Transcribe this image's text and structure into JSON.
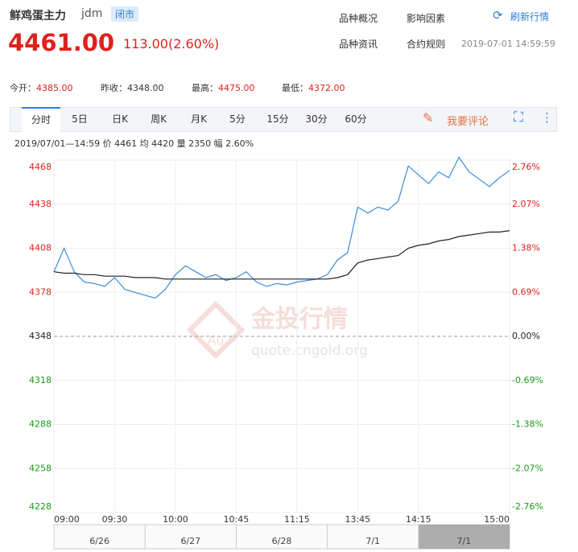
{
  "header": {
    "name": "鲜鸡蛋主力",
    "code": "jdm",
    "status": "闭市",
    "links": [
      "品种概况",
      "影响因素",
      "品种资讯",
      "合约规则"
    ],
    "refresh": "刷新行情",
    "time": "2019-07-01 14:59:59",
    "price": "4461.00",
    "change": "113.00(2.60%)"
  },
  "stats": [
    {
      "label": "今开：",
      "value": "4385.00"
    },
    {
      "label": "昨收：",
      "value": "4348.00"
    },
    {
      "label": "最高：",
      "value": "4475.00"
    },
    {
      "label": "最低：",
      "value": "4372.00"
    }
  ],
  "tabs": [
    "分时",
    "5日",
    "日K",
    "周K",
    "月K",
    "5分",
    "15分",
    "30分",
    "60分"
  ],
  "comment": "我要评论",
  "info": {
    "time": "2019/07/01—14:59",
    "items": [
      {
        "label": "价",
        "value": "4461"
      },
      {
        "label": "均",
        "value": "4420"
      },
      {
        "label": "量",
        "value": "2350"
      },
      {
        "label": "幅",
        "value": "2.60%"
      }
    ]
  },
  "watermark": {
    "logo": "Au",
    "text": "金投行情",
    "url": "quote.cngold.org"
  },
  "navigator": {
    "dates": [
      "6/26",
      "6/27",
      "6/28",
      "7/1",
      "7/1"
    ]
  },
  "chart_data": {
    "type": "line",
    "x": [
      0,
      5,
      10,
      15,
      20,
      25,
      30,
      35,
      40,
      45,
      50,
      55,
      60,
      65,
      70,
      75,
      80,
      85,
      90,
      95,
      100,
      105,
      110,
      115,
      120,
      125,
      130,
      135,
      140,
      145,
      150,
      155,
      160,
      165,
      170,
      175,
      180,
      185,
      190,
      195,
      200,
      205,
      210,
      215,
      220,
      225
    ],
    "series": [
      {
        "color": "#3a8dd4",
        "values": [
          4392,
          4408,
          4392,
          4385,
          4384,
          4382,
          4388,
          4380,
          4378,
          4376,
          4374,
          4380,
          4390,
          4396,
          4392,
          4388,
          4390,
          4386,
          4388,
          4392,
          4385,
          4382,
          4384,
          4383,
          4385,
          4386,
          4387,
          4390,
          4400,
          4405,
          4436,
          4432,
          4436,
          4434,
          4440,
          4464,
          4458,
          4452,
          4460,
          4456,
          4470,
          4460,
          4455,
          4450,
          4456,
          4461
        ]
      },
      {
        "color": "#222222",
        "values": [
          4392,
          4391,
          4391,
          4390,
          4390,
          4389,
          4389,
          4389,
          4388,
          4388,
          4388,
          4387,
          4387,
          4387,
          4387,
          4387,
          4387,
          4387,
          4387,
          4387,
          4387,
          4387,
          4387,
          4387,
          4387,
          4387,
          4387,
          4387,
          4388,
          4390,
          4398,
          4400,
          4401,
          4402,
          4403,
          4408,
          4410,
          4411,
          4413,
          4414,
          4416,
          4417,
          4418,
          4419,
          4419,
          4420
        ]
      }
    ],
    "xlim": [
      0,
      225
    ],
    "xticks": [
      {
        "value": 0,
        "label": "09:00"
      },
      {
        "value": 30,
        "label": "09:30"
      },
      {
        "value": 60,
        "label": "10:00"
      },
      {
        "value": 90,
        "label": "10:45"
      },
      {
        "value": 120,
        "label": "11:15"
      },
      {
        "value": 150,
        "label": "13:45"
      },
      {
        "value": 180,
        "label": "14:15"
      },
      {
        "value": 225,
        "label": "15:00"
      }
    ],
    "ylim": [
      4228,
      4468
    ],
    "yticks": [
      4468,
      4438,
      4408,
      4378,
      4348,
      4318,
      4288,
      4258,
      4228
    ],
    "y2lim": [
      -2.76,
      2.76
    ],
    "y2ticks": [
      {
        "value": 2.76,
        "label": "2.76%"
      },
      {
        "value": 2.07,
        "label": "2.07%"
      },
      {
        "value": 1.38,
        "label": "1.38%"
      },
      {
        "value": 0.69,
        "label": "0.69%"
      },
      {
        "value": 0,
        "label": "0.00%"
      },
      {
        "value": -0.69,
        "label": "-0.69%"
      },
      {
        "value": -1.38,
        "label": "-1.38%"
      },
      {
        "value": -2.07,
        "label": "-2.07%"
      },
      {
        "value": -2.76,
        "label": "-2.76%"
      }
    ],
    "grid": true,
    "up_color": "#e0201c",
    "down_color": "#179c17",
    "flat_color": "#222222"
  }
}
